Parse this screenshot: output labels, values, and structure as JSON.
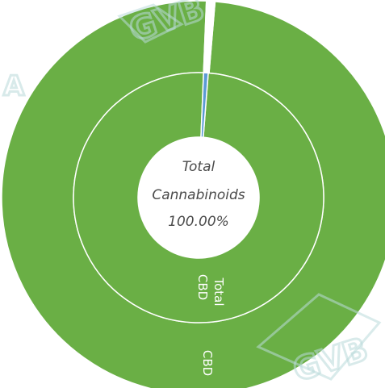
{
  "chart_data": {
    "type": "pie",
    "subtype": "nested-donut",
    "center_label": [
      "Total",
      "Cannabinoids",
      "100.00%"
    ],
    "rings": [
      {
        "name": "outer",
        "segments": [
          {
            "label": "CBD",
            "value": 99.3,
            "color": "#6aaf45"
          },
          {
            "label": "",
            "value": 0.7,
            "color": "#ffffff"
          }
        ]
      },
      {
        "name": "inner",
        "segments": [
          {
            "label": "Total CBD",
            "value": 99.4,
            "color": "#6aaf45"
          },
          {
            "label": "",
            "value": 0.6,
            "color": "#5b9bd5"
          }
        ]
      }
    ]
  },
  "watermark": {
    "text": "GVB",
    "color": "#b9dada"
  }
}
